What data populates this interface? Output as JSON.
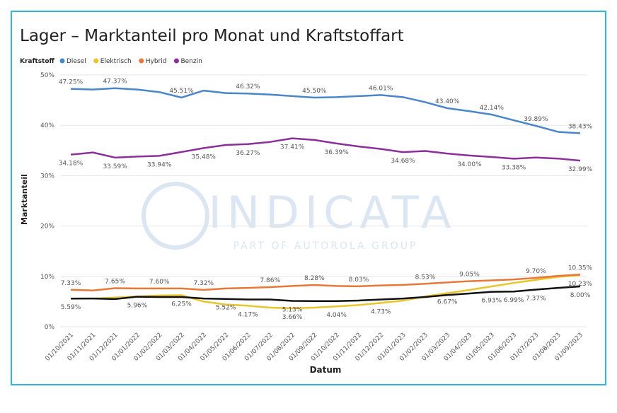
{
  "chart_data": {
    "type": "line",
    "title": "Lager – Marktanteil pro Monat und Kraftstoffart",
    "legend_title": "Kraftstoff",
    "xlabel": "Datum",
    "ylabel": "Marktanteil",
    "watermark": "INDICATA",
    "watermark_subtitle": "PART OF AUTOROLA GROUP",
    "categories": [
      "01/10/2021",
      "01/11/2021",
      "01/12/2021",
      "01/01/2022",
      "01/02/2022",
      "01/03/2022",
      "01/04/2022",
      "01/05/2022",
      "01/06/2022",
      "01/07/2022",
      "01/08/2022",
      "01/09/2022",
      "01/10/2022",
      "01/11/2022",
      "01/12/2022",
      "01/01/2023",
      "01/02/2023",
      "01/03/2023",
      "01/04/2023",
      "01/05/2023",
      "01/06/2023",
      "01/07/2023",
      "01/08/2023",
      "01/09/2023"
    ],
    "ylim": [
      0,
      50
    ],
    "yticks": [
      {
        "value": 0,
        "label": "0%"
      },
      {
        "value": 10,
        "label": "10%"
      },
      {
        "value": 20,
        "label": "20%"
      },
      {
        "value": 30,
        "label": "30%"
      },
      {
        "value": 40,
        "label": "40%"
      },
      {
        "value": 50,
        "label": "50%"
      }
    ],
    "grid": true,
    "series": [
      {
        "name": "Diesel",
        "color": "#4a86c8",
        "values": [
          47.25,
          47.1,
          47.37,
          47.1,
          46.6,
          45.51,
          46.9,
          46.4,
          46.32,
          46.1,
          45.8,
          45.5,
          45.6,
          45.8,
          46.01,
          45.6,
          44.6,
          43.4,
          42.8,
          42.14,
          41.0,
          39.89,
          38.7,
          38.43
        ],
        "value_labels": [
          "47.25%",
          null,
          "47.37%",
          null,
          null,
          "45.51%",
          null,
          null,
          "46.32%",
          null,
          null,
          "45.50%",
          null,
          null,
          "46.01%",
          null,
          null,
          "43.40%",
          null,
          "42.14%",
          null,
          "39.89%",
          null,
          "38.43%"
        ]
      },
      {
        "name": "Elektrisch",
        "color": "#e8c52a",
        "values": [
          5.6,
          5.6,
          5.8,
          6.0,
          6.2,
          6.25,
          5.0,
          4.4,
          4.17,
          3.8,
          3.66,
          3.8,
          4.04,
          4.3,
          4.73,
          5.2,
          6.0,
          6.67,
          7.3,
          8.0,
          8.7,
          9.3,
          9.9,
          10.23
        ],
        "value_labels": [
          null,
          null,
          null,
          null,
          null,
          "6.25%",
          null,
          null,
          "4.17%",
          null,
          "3.66%",
          null,
          "4.04%",
          null,
          "4.73%",
          null,
          null,
          "6.67%",
          null,
          null,
          null,
          null,
          null,
          "10.23%"
        ]
      },
      {
        "name": "Hybrid",
        "color": "#e8773a",
        "values": [
          7.33,
          7.2,
          7.65,
          7.6,
          7.6,
          7.6,
          7.32,
          7.6,
          7.7,
          7.86,
          8.1,
          8.28,
          8.1,
          8.03,
          8.2,
          8.3,
          8.53,
          8.8,
          9.05,
          9.2,
          9.4,
          9.7,
          10.1,
          10.35
        ],
        "value_labels": [
          "7.33%",
          null,
          "7.65%",
          null,
          "7.60%",
          null,
          "7.32%",
          null,
          null,
          "7.86%",
          null,
          "8.28%",
          null,
          "8.03%",
          null,
          null,
          "8.53%",
          null,
          "9.05%",
          null,
          null,
          "9.70%",
          null,
          "10.35%"
        ]
      },
      {
        "name": "Benzin",
        "color": "#8b2f9b",
        "values": [
          34.18,
          34.6,
          33.59,
          33.8,
          33.94,
          34.7,
          35.48,
          36.1,
          36.27,
          36.7,
          37.41,
          37.1,
          36.39,
          35.8,
          35.3,
          34.68,
          34.9,
          34.4,
          34.0,
          33.7,
          33.38,
          33.6,
          33.4,
          32.99
        ],
        "value_labels": [
          "34.18%",
          null,
          "33.59%",
          null,
          "33.94%",
          null,
          "35.48%",
          null,
          "36.27%",
          null,
          "37.41%",
          null,
          "36.39%",
          null,
          null,
          "34.68%",
          null,
          null,
          "34.00%",
          null,
          "33.38%",
          null,
          null,
          "32.99%"
        ]
      },
      {
        "color": "#111111",
        "values": [
          5.59,
          5.6,
          5.5,
          5.96,
          5.9,
          5.9,
          5.6,
          5.52,
          5.4,
          5.4,
          5.13,
          5.1,
          5.1,
          5.2,
          5.4,
          5.6,
          5.9,
          6.3,
          6.6,
          6.93,
          6.99,
          7.37,
          7.7,
          8.0
        ],
        "value_labels": [
          "5.59%",
          null,
          null,
          "5.96%",
          null,
          null,
          null,
          "5.52%",
          null,
          null,
          "5.13%",
          null,
          null,
          null,
          null,
          null,
          null,
          null,
          null,
          "6.93%",
          "6.99%",
          "7.37%",
          null,
          "8.00%"
        ]
      }
    ]
  }
}
